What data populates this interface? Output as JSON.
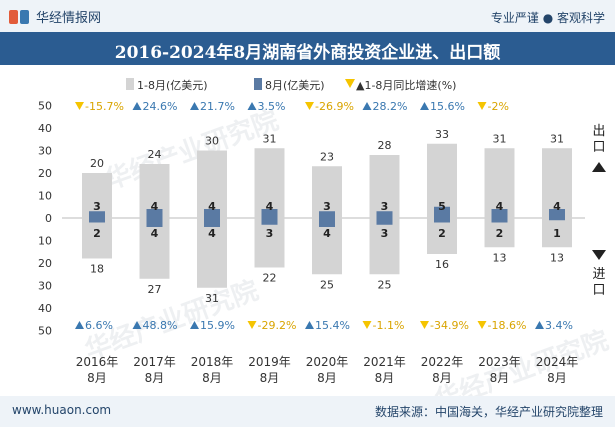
{
  "header": {
    "brand": "华经情报网",
    "tagline_left": "专业严谨",
    "tagline_right": "客观科学",
    "title": "2016-2024年8月湖南省外商投资企业进、出口额"
  },
  "footer": {
    "url": "www.huaon.com",
    "source": "数据来源：中国海关，华经产业研究院整理"
  },
  "watermark": "华经产业研究院",
  "colors": {
    "header_bg": "#2b5c91",
    "cumulative_bar": "#d4d4d4",
    "monthly_bar": "#5a7aa3",
    "up_marker": "#3a78b0",
    "down_marker": "#f5c400"
  },
  "chart_data": {
    "type": "bar",
    "legend": [
      "1-8月(亿美元)",
      "8月(亿美元)",
      "▲1-8月同比增速(%)"
    ],
    "categories": [
      "2016年\n8月",
      "2017年\n8月",
      "2018年\n8月",
      "2019年\n8月",
      "2020年\n8月",
      "2021年\n8月",
      "2022年\n8月",
      "2023年\n8月",
      "2024年\n8月"
    ],
    "y_ticks_top": [
      "50",
      "40",
      "30",
      "20",
      "10",
      "0"
    ],
    "y_ticks_bottom": [
      "10",
      "20",
      "30",
      "40",
      "50"
    ],
    "ylim": [
      -50,
      50
    ],
    "export_label": "出口",
    "import_label": "进口",
    "series": [
      {
        "name": "1-8月(亿美元)",
        "direction": "export",
        "values": [
          20,
          24,
          30,
          31,
          23,
          28,
          33,
          31,
          31
        ]
      },
      {
        "name": "1-8月(亿美元)",
        "direction": "import",
        "values": [
          18,
          27,
          31,
          22,
          25,
          25,
          16,
          13,
          13
        ]
      },
      {
        "name": "8月(亿美元)",
        "direction": "export",
        "values": [
          3,
          4,
          4,
          4,
          3,
          3,
          5,
          4,
          4
        ]
      },
      {
        "name": "8月(亿美元)",
        "direction": "import",
        "values": [
          2,
          4,
          4,
          3,
          4,
          3,
          2,
          2,
          1
        ]
      }
    ],
    "export_growth": [
      "-15.7%",
      "24.6%",
      "21.7%",
      "3.5%",
      "-26.9%",
      "28.2%",
      "15.6%",
      "-2%",
      ""
    ],
    "import_growth": [
      "6.6%",
      "48.8%",
      "15.9%",
      "-29.2%",
      "15.4%",
      "-1.1%",
      "-34.9%",
      "-18.6%",
      "3.4%"
    ]
  }
}
